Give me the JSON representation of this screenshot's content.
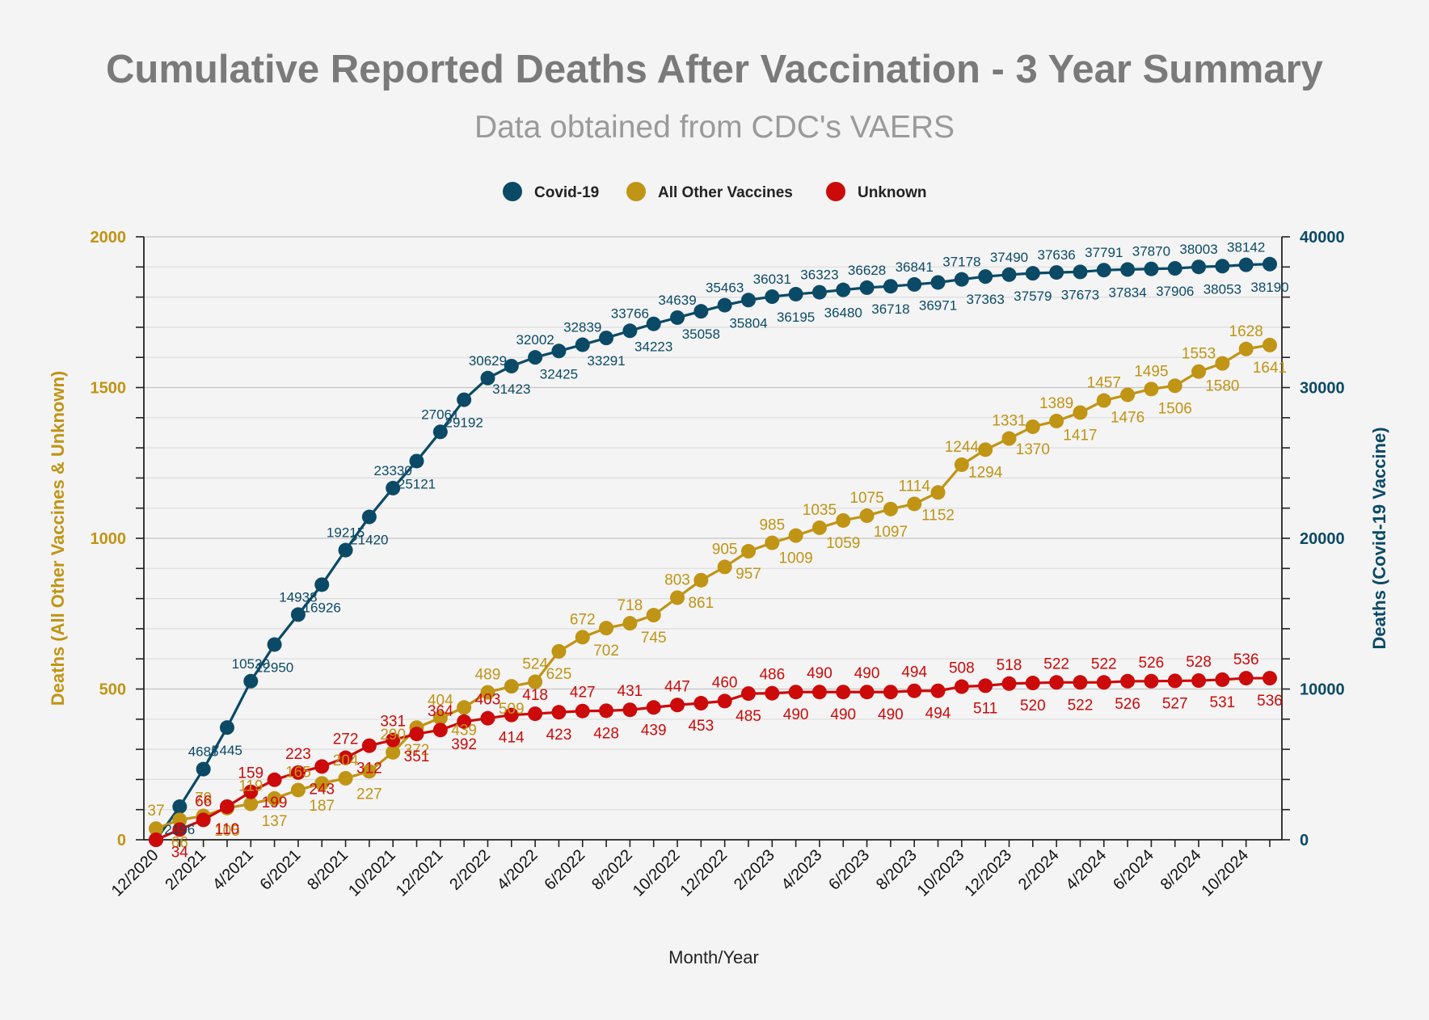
{
  "chart_data": {
    "type": "line",
    "title": "Cumulative Reported Deaths After Vaccination - 3 Year Summary",
    "subtitle": "Data obtained from CDC's VAERS",
    "xlabel": "Month/Year",
    "ylabel_left": "Deaths (All Other Vaccines & Unknown)",
    "ylabel_right": "Deaths (Covid-19 Vaccine)",
    "ylim_left": [
      0,
      2000
    ],
    "ylim_right": [
      0,
      40000
    ],
    "yticks_left": [
      "0",
      "500",
      "1000",
      "1500",
      "2000"
    ],
    "yticks_right": [
      "0",
      "10000",
      "20000",
      "30000",
      "40000"
    ],
    "grid": true,
    "legend_position": "top-center",
    "categories": [
      "12/2020",
      "1/2021",
      "2/2021",
      "3/2021",
      "4/2021",
      "5/2021",
      "6/2021",
      "7/2021",
      "8/2021",
      "9/2021",
      "10/2021",
      "11/2021",
      "12/2021",
      "1/2022",
      "2/2022",
      "3/2022",
      "4/2022",
      "5/2022",
      "6/2022",
      "7/2022",
      "8/2022",
      "9/2022",
      "10/2022",
      "11/2022",
      "12/2022",
      "1/2023",
      "2/2023",
      "3/2023",
      "4/2023",
      "5/2023",
      "6/2023",
      "7/2023",
      "8/2023",
      "9/2023",
      "10/2023",
      "11/2023",
      "12/2023",
      "1/2024",
      "2/2024",
      "3/2024",
      "4/2024",
      "5/2024",
      "6/2024",
      "7/2024",
      "8/2024",
      "9/2024",
      "10/2024",
      "11/2024"
    ],
    "xtick_labels": [
      "12/2020",
      "",
      "2/2021",
      "",
      "4/2021",
      "",
      "6/2021",
      "",
      "8/2021",
      "",
      "10/2021",
      "",
      "12/2021",
      "",
      "2/2022",
      "",
      "4/2022",
      "",
      "6/2022",
      "",
      "8/2022",
      "",
      "10/2022",
      "",
      "12/2022",
      "",
      "2/2023",
      "",
      "4/2023",
      "",
      "6/2023",
      "",
      "8/2023",
      "",
      "10/2023",
      "",
      "12/2023",
      "",
      "2/2024",
      "",
      "4/2024",
      "",
      "6/2024",
      "",
      "8/2024",
      "",
      "10/2024",
      ""
    ],
    "series": [
      {
        "name": "Covid-19",
        "axis": "right",
        "color": "#0b4a66",
        "values": [
          0,
          2196,
          4685,
          7445,
          10520,
          12950,
          14938,
          16926,
          19215,
          21420,
          23330,
          25121,
          27061,
          29192,
          30629,
          31423,
          32002,
          32425,
          32839,
          33291,
          33766,
          34223,
          34639,
          35058,
          35463,
          35804,
          36031,
          36195,
          36323,
          36480,
          36628,
          36718,
          36841,
          36971,
          37178,
          37363,
          37490,
          37579,
          37636,
          37673,
          37791,
          37834,
          37870,
          37906,
          38003,
          38053,
          38142,
          38190
        ]
      },
      {
        "name": "All Other Vaccines",
        "axis": "left",
        "color": "#c09414",
        "values": [
          37,
          66,
          79,
          105,
          119,
          137,
          165,
          187,
          204,
          227,
          290,
          372,
          404,
          439,
          489,
          509,
          524,
          625,
          672,
          702,
          718,
          745,
          803,
          861,
          905,
          957,
          985,
          1009,
          1035,
          1059,
          1075,
          1097,
          1114,
          1152,
          1244,
          1294,
          1331,
          1370,
          1389,
          1417,
          1457,
          1476,
          1495,
          1506,
          1553,
          1580,
          1628,
          1641
        ]
      },
      {
        "name": "Unknown",
        "axis": "left",
        "color": "#cc0a0a",
        "values": [
          0,
          34,
          66,
          110,
          159,
          199,
          223,
          243,
          272,
          312,
          331,
          351,
          364,
          392,
          403,
          414,
          418,
          423,
          427,
          428,
          431,
          439,
          447,
          453,
          460,
          485,
          486,
          490,
          490,
          490,
          490,
          490,
          494,
          494,
          508,
          511,
          518,
          520,
          522,
          522,
          522,
          526,
          526,
          527,
          528,
          531,
          536,
          536
        ]
      }
    ]
  }
}
